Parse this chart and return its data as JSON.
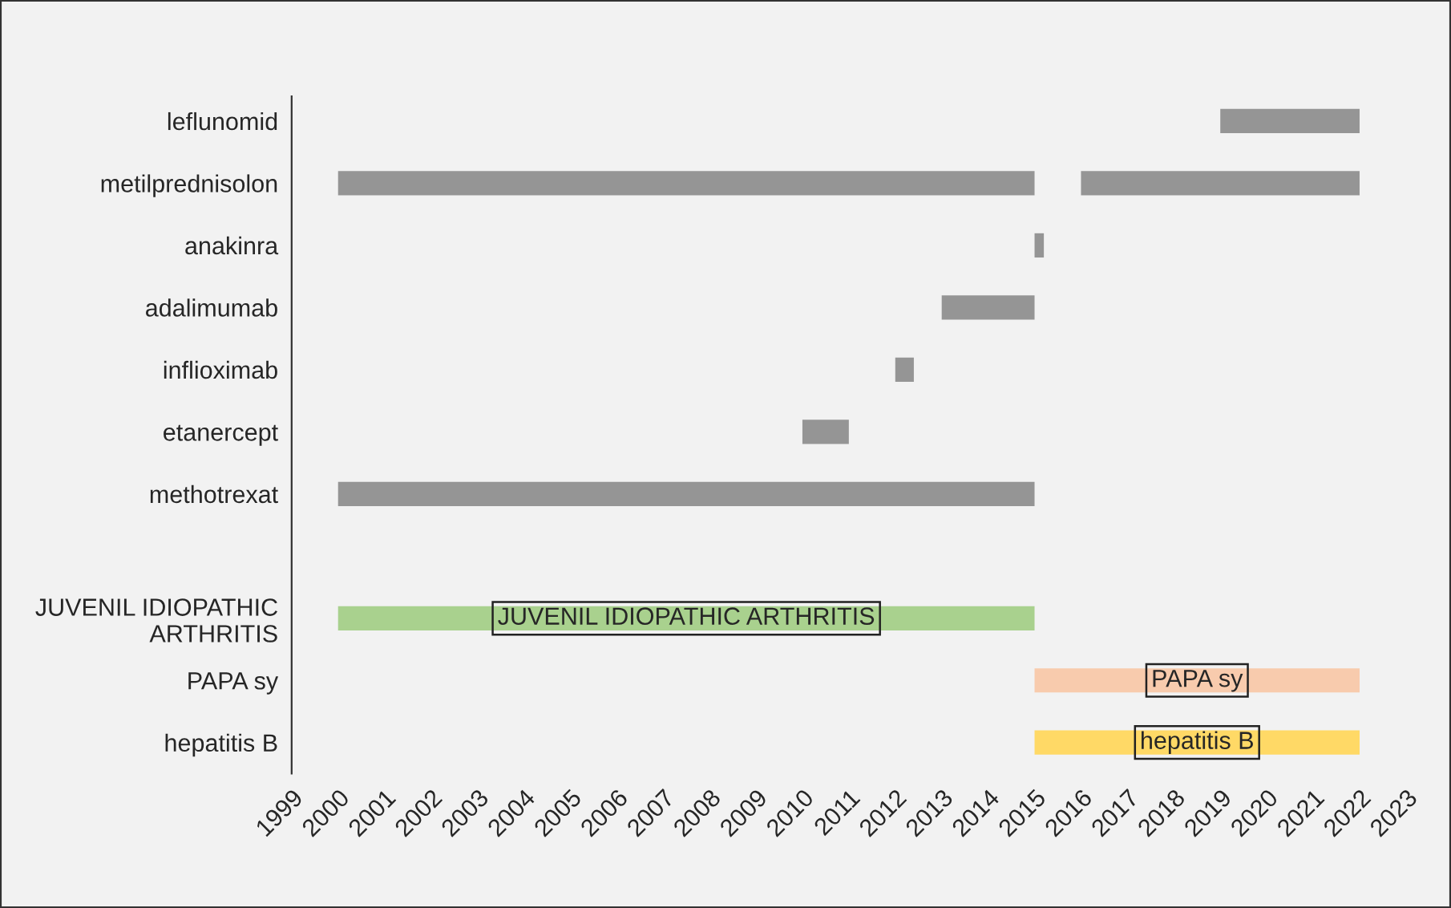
{
  "chart_data": {
    "type": "bar",
    "orientation": "horizontal",
    "categories": [
      "leflunomid",
      "metilprednisolon",
      "anakinra",
      "adalimumab",
      "inflioximab",
      "etanercept",
      "methotrexat",
      null,
      "JUVENIL IDIOPATHIC\nARTHRITIS",
      "PAPA sy",
      "hepatitis B"
    ],
    "series": [
      {
        "values": [
          3,
          15,
          0.2,
          2,
          0.4,
          1,
          15,
          null,
          15,
          7,
          7
        ],
        "base": [
          2019,
          2000,
          2015,
          2013,
          2012,
          2010,
          2000,
          null,
          2000,
          2015,
          2015
        ],
        "colors": [
          "#959595",
          "#959595",
          "#959595",
          "#959595",
          "#959595",
          "#959595",
          "#959595",
          "#959595",
          "#a9d18e",
          "#f8cbad",
          "#ffd966"
        ],
        "value_labels": [
          null,
          null,
          null,
          null,
          null,
          null,
          null,
          null,
          "JUVENIL IDIOPATHIC ARTHRITIS",
          "PAPA sy",
          "hepatitis B"
        ]
      },
      {
        "values": [
          null,
          6,
          null,
          null,
          null,
          null,
          null,
          null,
          null,
          null,
          null
        ],
        "base": [
          null,
          2016,
          null,
          null,
          null,
          null,
          null,
          null,
          null,
          null,
          null
        ],
        "color": "#959595"
      }
    ],
    "xlim": [
      1999,
      2023
    ],
    "xticks": [
      1999,
      2000,
      2001,
      2002,
      2003,
      2004,
      2005,
      2006,
      2007,
      2008,
      2009,
      2010,
      2011,
      2012,
      2013,
      2014,
      2015,
      2016,
      2017,
      2018,
      2019,
      2020,
      2021,
      2022,
      2023
    ],
    "grid": false,
    "legend": false
  }
}
